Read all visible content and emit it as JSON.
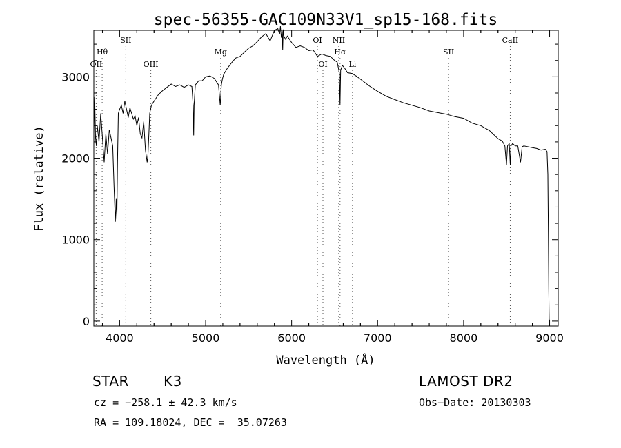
{
  "chart_data": {
    "type": "line",
    "title": "spec-56355-GAC109N33V1_sp15-168.fits",
    "xlabel": "Wavelength (Å)",
    "ylabel": "Flux (relative)",
    "xlim": [
      3700,
      9100
    ],
    "ylim": [
      -60,
      3570
    ],
    "xticks": [
      4000,
      5000,
      6000,
      7000,
      8000,
      9000
    ],
    "yticks": [
      0,
      1000,
      2000,
      3000
    ],
    "grid": false,
    "series": [
      {
        "x": [
          3700,
          3710,
          3720,
          3730,
          3740,
          3760,
          3780,
          3800,
          3820,
          3840,
          3860,
          3880,
          3900,
          3920,
          3935,
          3950,
          3960,
          3968,
          3975,
          3985,
          4000,
          4020,
          4040,
          4060,
          4080,
          4100,
          4120,
          4140,
          4160,
          4180,
          4200,
          4220,
          4240,
          4260,
          4280,
          4300,
          4320,
          4330,
          4340,
          4350,
          4370,
          4400,
          4450,
          4500,
          4550,
          4600,
          4650,
          4700,
          4750,
          4800,
          4840,
          4855,
          4861,
          4866,
          4880,
          4920,
          4960,
          5000,
          5050,
          5100,
          5150,
          5170,
          5183,
          5195,
          5210,
          5250,
          5300,
          5350,
          5400,
          5450,
          5500,
          5550,
          5600,
          5650,
          5700,
          5750,
          5800,
          5840,
          5860,
          5870,
          5880,
          5890,
          5896,
          5902,
          5910,
          5930,
          5950,
          6000,
          6050,
          6100,
          6150,
          6200,
          6250,
          6300,
          6350,
          6400,
          6450,
          6500,
          6530,
          6555,
          6563,
          6570,
          6590,
          6620,
          6650,
          6700,
          6750,
          6800,
          6900,
          7000,
          7100,
          7200,
          7300,
          7400,
          7500,
          7600,
          7700,
          7800,
          7900,
          8000,
          8100,
          8200,
          8300,
          8400,
          8450,
          8480,
          8498,
          8510,
          8530,
          8542,
          8550,
          8570,
          8600,
          8630,
          8662,
          8680,
          8700,
          8750,
          8800,
          8850,
          8900,
          8950,
          8970,
          8980,
          8985,
          8990,
          8995,
          9000
        ],
        "y": [
          2300,
          2750,
          2250,
          2150,
          2400,
          2200,
          2550,
          2250,
          1950,
          2300,
          2050,
          2350,
          2250,
          2150,
          1650,
          1220,
          1500,
          1250,
          1950,
          2550,
          2600,
          2650,
          2550,
          2700,
          2600,
          2500,
          2620,
          2550,
          2480,
          2520,
          2400,
          2500,
          2300,
          2250,
          2450,
          2100,
          1950,
          2050,
          2300,
          2550,
          2650,
          2700,
          2780,
          2830,
          2870,
          2910,
          2880,
          2900,
          2870,
          2900,
          2880,
          2650,
          2280,
          2650,
          2900,
          2950,
          2950,
          3000,
          3010,
          2980,
          2900,
          2650,
          2900,
          2970,
          3030,
          3100,
          3170,
          3230,
          3250,
          3300,
          3350,
          3380,
          3430,
          3490,
          3530,
          3440,
          3570,
          3590,
          3520,
          3620,
          3480,
          3560,
          3330,
          3580,
          3500,
          3460,
          3500,
          3420,
          3360,
          3380,
          3360,
          3320,
          3330,
          3250,
          3280,
          3260,
          3250,
          3200,
          3180,
          3050,
          2650,
          3080,
          3140,
          3100,
          3050,
          3040,
          3010,
          2970,
          2890,
          2820,
          2760,
          2720,
          2680,
          2650,
          2620,
          2580,
          2560,
          2540,
          2510,
          2490,
          2430,
          2400,
          2340,
          2240,
          2210,
          2150,
          1920,
          2150,
          2180,
          1920,
          2150,
          2180,
          2150,
          2150,
          1950,
          2140,
          2150,
          2140,
          2130,
          2120,
          2100,
          2110,
          2080,
          1800,
          1100,
          400,
          20,
          10
        ]
      }
    ],
    "line_markers": [
      {
        "label": "OII",
        "x": 3727,
        "row": 3
      },
      {
        "label": "Hθ",
        "x": 3797,
        "row": 2
      },
      {
        "label": "SII",
        "x": 4072,
        "row": 1
      },
      {
        "label": "OIII",
        "x": 4363,
        "row": 3
      },
      {
        "label": "Mg",
        "x": 5175,
        "row": 2
      },
      {
        "label": "OI",
        "x": 6300,
        "row": 1
      },
      {
        "label": "OI",
        "x": 6364,
        "row": 3
      },
      {
        "label": "NII",
        "x": 6548,
        "row": 1
      },
      {
        "label": "Hα",
        "x": 6563,
        "row": 2
      },
      {
        "label": "Li",
        "x": 6708,
        "row": 3
      },
      {
        "label": "SII",
        "x": 7825,
        "row": 2
      },
      {
        "label": "CaII",
        "x": 8542,
        "row": 1
      }
    ]
  },
  "info": {
    "object_type": "STAR",
    "subclass": "K3",
    "survey": "LAMOST DR2",
    "cz": "cz = −258.1 ± 42.3 km/s",
    "obs_date": "Obs−Date: 20130303",
    "radec": "RA = 109.18024, DEC =  35.07263"
  }
}
